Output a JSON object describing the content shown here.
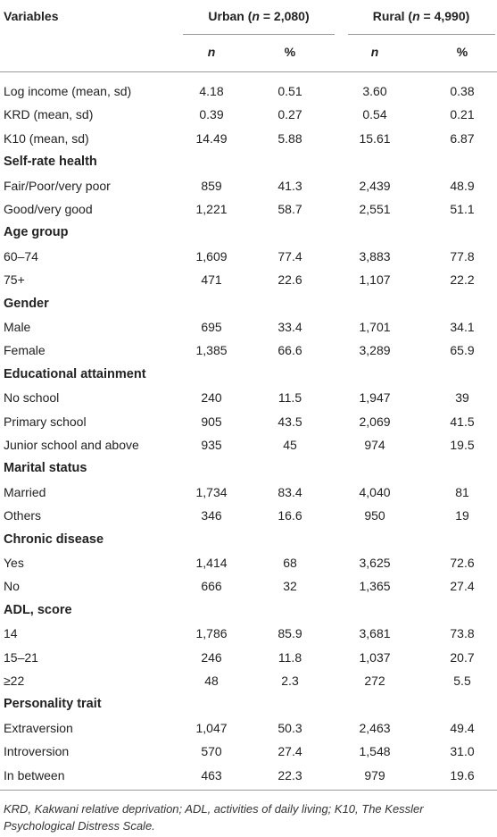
{
  "table": {
    "header": {
      "variables": "Variables",
      "groups": [
        [
          "Urban (",
          "n",
          " = 2,080)"
        ],
        [
          "Rural (",
          "n",
          " = 4,990)"
        ]
      ],
      "subheaders": [
        "n",
        "%",
        "n",
        "%"
      ]
    },
    "rows": [
      {
        "label": "Log income (mean, sd)",
        "cells": [
          "4.18",
          "0.51",
          "3.60",
          "0.38"
        ]
      },
      {
        "label": "KRD (mean, sd)",
        "cells": [
          "0.39",
          "0.27",
          "0.54",
          "0.21"
        ]
      },
      {
        "label": "K10 (mean, sd)",
        "cells": [
          "14.49",
          "5.88",
          "15.61",
          "6.87"
        ]
      },
      {
        "section": "Self-rate health"
      },
      {
        "label": "Fair/Poor/very poor",
        "cells": [
          "859",
          "41.3",
          "2,439",
          "48.9"
        ]
      },
      {
        "label": "Good/very good",
        "cells": [
          "1,221",
          "58.7",
          "2,551",
          "51.1"
        ]
      },
      {
        "section": "Age group"
      },
      {
        "label": "60–74",
        "cells": [
          "1,609",
          "77.4",
          "3,883",
          "77.8"
        ]
      },
      {
        "label": "75+",
        "cells": [
          "471",
          "22.6",
          "1,107",
          "22.2"
        ]
      },
      {
        "section": "Gender"
      },
      {
        "label": "Male",
        "cells": [
          "695",
          "33.4",
          "1,701",
          "34.1"
        ]
      },
      {
        "label": "Female",
        "cells": [
          "1,385",
          "66.6",
          "3,289",
          "65.9"
        ]
      },
      {
        "section": "Educational attainment"
      },
      {
        "label": "No school",
        "cells": [
          "240",
          "11.5",
          "1,947",
          "39"
        ]
      },
      {
        "label": "Primary school",
        "cells": [
          "905",
          "43.5",
          "2,069",
          "41.5"
        ]
      },
      {
        "label": "Junior school and above",
        "cells": [
          "935",
          "45",
          "974",
          "19.5"
        ]
      },
      {
        "section": "Marital status"
      },
      {
        "label": "Married",
        "cells": [
          "1,734",
          "83.4",
          "4,040",
          "81"
        ]
      },
      {
        "label": "Others",
        "cells": [
          "346",
          "16.6",
          "950",
          "19"
        ]
      },
      {
        "section": "Chronic disease"
      },
      {
        "label": "Yes",
        "cells": [
          "1,414",
          "68",
          "3,625",
          "72.6"
        ]
      },
      {
        "label": "No",
        "cells": [
          "666",
          "32",
          "1,365",
          "27.4"
        ]
      },
      {
        "section": "ADL, score"
      },
      {
        "label": "14",
        "cells": [
          "1,786",
          "85.9",
          "3,681",
          "73.8"
        ]
      },
      {
        "label": "15–21",
        "cells": [
          "246",
          "11.8",
          "1,037",
          "20.7"
        ]
      },
      {
        "label": "≥22",
        "cells": [
          "48",
          "2.3",
          "272",
          "5.5"
        ]
      },
      {
        "section": "Personality trait"
      },
      {
        "label": "Extraversion",
        "cells": [
          "1,047",
          "50.3",
          "2,463",
          "49.4"
        ]
      },
      {
        "label": "Introversion",
        "cells": [
          "570",
          "27.4",
          "1,548",
          "31.0"
        ]
      },
      {
        "label": "In between",
        "cells": [
          "463",
          "22.3",
          "979",
          "19.6"
        ]
      }
    ],
    "footnote": "KRD, Kakwani relative deprivation; ADL, activities of daily living; K10, The Kessler Psychological Distress Scale."
  }
}
